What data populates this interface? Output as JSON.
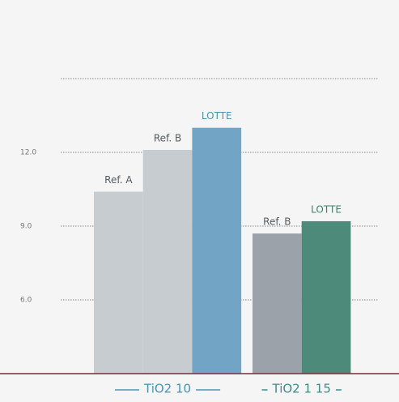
{
  "chart_data": {
    "type": "bar",
    "groups": [
      {
        "name": "TiO2 10",
        "color": "#4a93b4",
        "bars": [
          {
            "label": "Ref. A",
            "value": 10.4,
            "color": "#c7ccd1",
            "label_color": "#555b61"
          },
          {
            "label": "Ref. B",
            "value": 12.1,
            "color": "#c7ccd1",
            "label_color": "#555b61"
          },
          {
            "label": "LOTTE",
            "value": 13.0,
            "color": "#72a5c5",
            "label_color": "#4a93b4"
          }
        ]
      },
      {
        "name": "TiO2 1 15",
        "color": "#3f8a8a",
        "bars": [
          {
            "label": "Ref. B",
            "value": 8.7,
            "color": "#9ba2a9",
            "label_color": "#555b61"
          },
          {
            "label": "LOTTE",
            "value": 9.2,
            "color": "#4e8a7a",
            "label_color": "#3f7f6c"
          }
        ]
      }
    ],
    "ylim": [
      3,
      18
    ],
    "yticks": [
      {
        "value": 6,
        "label": "6.0"
      },
      {
        "value": 9,
        "label": "9.0"
      },
      {
        "value": 12,
        "label": "12.0"
      },
      {
        "value": 15,
        "label": null
      }
    ],
    "grid": true
  }
}
